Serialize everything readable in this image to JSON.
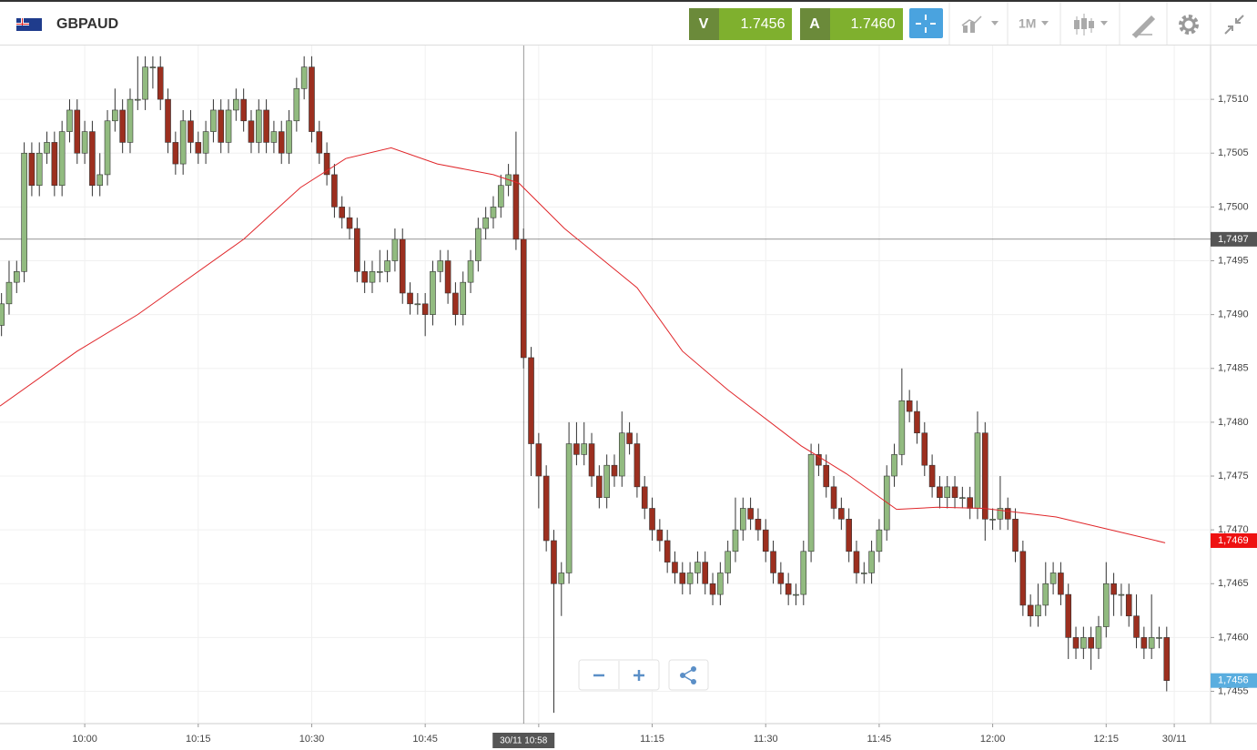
{
  "header": {
    "symbol": "GBPAUD",
    "sell": {
      "label": "V",
      "price": "1.7456"
    },
    "buy": {
      "label": "A",
      "price": "1.7460"
    },
    "timeframe": "1M"
  },
  "chart_data": {
    "type": "candlestick",
    "x": [
      589,
      590,
      591,
      592,
      593,
      594,
      595,
      596,
      597,
      598,
      599,
      600,
      601,
      602,
      603,
      604,
      605,
      606,
      607,
      608,
      609,
      610,
      611,
      612,
      613,
      614,
      615,
      616,
      617,
      618,
      619,
      620,
      621,
      622,
      623,
      624,
      625,
      626,
      627,
      628,
      629,
      630,
      631,
      632,
      633,
      634,
      635,
      636,
      637,
      638,
      639,
      640,
      641,
      642,
      643,
      644,
      645,
      646,
      647,
      648,
      649,
      650,
      651,
      652,
      653,
      654,
      655,
      656,
      657,
      658,
      659,
      660,
      661,
      662,
      663,
      664,
      665,
      666,
      667,
      668,
      669,
      670,
      671,
      672,
      673,
      674,
      675,
      676,
      677,
      678,
      679,
      680,
      681,
      682,
      683,
      684,
      685,
      686,
      687,
      688,
      689,
      690,
      691,
      692,
      693,
      694,
      695,
      696,
      697,
      698,
      699,
      700,
      701,
      702,
      703,
      704,
      705,
      706,
      707,
      708,
      709,
      710,
      711,
      712,
      713,
      714,
      715,
      716,
      717,
      718,
      719,
      720,
      721,
      722,
      723,
      724,
      725,
      726,
      727,
      728,
      729,
      730,
      731,
      732,
      733,
      734,
      735,
      736,
      737,
      738,
      739,
      740,
      741,
      742,
      743
    ],
    "ohlc": [
      [
        1.7489,
        1.7492,
        1.7488,
        1.7491
      ],
      [
        1.7491,
        1.7495,
        1.749,
        1.7493
      ],
      [
        1.7493,
        1.7495,
        1.7492,
        1.7494
      ],
      [
        1.7494,
        1.7506,
        1.7493,
        1.7505
      ],
      [
        1.7505,
        1.7506,
        1.7501,
        1.7502
      ],
      [
        1.7502,
        1.7506,
        1.7501,
        1.7505
      ],
      [
        1.7505,
        1.7507,
        1.7504,
        1.7506
      ],
      [
        1.7506,
        1.7507,
        1.7501,
        1.7502
      ],
      [
        1.7502,
        1.7508,
        1.7501,
        1.7507
      ],
      [
        1.7507,
        1.751,
        1.7506,
        1.7509
      ],
      [
        1.7509,
        1.751,
        1.7504,
        1.7505
      ],
      [
        1.7505,
        1.7508,
        1.7504,
        1.7507
      ],
      [
        1.7507,
        1.7508,
        1.7501,
        1.7502
      ],
      [
        1.7502,
        1.7505,
        1.7501,
        1.7503
      ],
      [
        1.7503,
        1.7509,
        1.7502,
        1.7508
      ],
      [
        1.7508,
        1.7511,
        1.7507,
        1.7509
      ],
      [
        1.7509,
        1.751,
        1.7505,
        1.7506
      ],
      [
        1.7506,
        1.7511,
        1.7505,
        1.751
      ],
      [
        1.751,
        1.7514,
        1.7509,
        1.751
      ],
      [
        1.751,
        1.7514,
        1.7509,
        1.7513
      ],
      [
        1.7513,
        1.7514,
        1.7511,
        1.7513
      ],
      [
        1.7513,
        1.7514,
        1.7509,
        1.751
      ],
      [
        1.751,
        1.7511,
        1.7505,
        1.7506
      ],
      [
        1.7506,
        1.7507,
        1.7503,
        1.7504
      ],
      [
        1.7504,
        1.7509,
        1.7503,
        1.7508
      ],
      [
        1.7508,
        1.7509,
        1.7505,
        1.7506
      ],
      [
        1.7506,
        1.7507,
        1.7504,
        1.7505
      ],
      [
        1.7505,
        1.7508,
        1.7504,
        1.7507
      ],
      [
        1.7507,
        1.751,
        1.7506,
        1.7509
      ],
      [
        1.7509,
        1.751,
        1.7505,
        1.7506
      ],
      [
        1.7506,
        1.751,
        1.7505,
        1.7509
      ],
      [
        1.7509,
        1.7511,
        1.7508,
        1.751
      ],
      [
        1.751,
        1.7511,
        1.7507,
        1.7508
      ],
      [
        1.7508,
        1.7509,
        1.7505,
        1.7506
      ],
      [
        1.7506,
        1.751,
        1.7505,
        1.7509
      ],
      [
        1.7509,
        1.751,
        1.7505,
        1.7506
      ],
      [
        1.7506,
        1.7508,
        1.7505,
        1.7507
      ],
      [
        1.7507,
        1.7508,
        1.7504,
        1.7505
      ],
      [
        1.7505,
        1.7509,
        1.7504,
        1.7508
      ],
      [
        1.7508,
        1.7512,
        1.7507,
        1.7511
      ],
      [
        1.7511,
        1.7514,
        1.751,
        1.7513
      ],
      [
        1.7513,
        1.7514,
        1.7506,
        1.7507
      ],
      [
        1.7507,
        1.7508,
        1.7504,
        1.7505
      ],
      [
        1.7505,
        1.7506,
        1.7502,
        1.7503
      ],
      [
        1.7503,
        1.7504,
        1.7499,
        1.75
      ],
      [
        1.75,
        1.7501,
        1.7498,
        1.7499
      ],
      [
        1.7499,
        1.75,
        1.7497,
        1.7498
      ],
      [
        1.7498,
        1.7499,
        1.7493,
        1.7494
      ],
      [
        1.7494,
        1.7495,
        1.7492,
        1.7493
      ],
      [
        1.7493,
        1.7495,
        1.7492,
        1.7494
      ],
      [
        1.7494,
        1.7496,
        1.7493,
        1.7494
      ],
      [
        1.7494,
        1.7496,
        1.7493,
        1.7495
      ],
      [
        1.7495,
        1.7498,
        1.7494,
        1.7497
      ],
      [
        1.7497,
        1.7498,
        1.7491,
        1.7492
      ],
      [
        1.7492,
        1.7493,
        1.749,
        1.7491
      ],
      [
        1.7491,
        1.7492,
        1.749,
        1.7491
      ],
      [
        1.7491,
        1.7492,
        1.7488,
        1.749
      ],
      [
        1.749,
        1.7495,
        1.7489,
        1.7494
      ],
      [
        1.7494,
        1.7496,
        1.7493,
        1.7495
      ],
      [
        1.7495,
        1.7496,
        1.7491,
        1.7492
      ],
      [
        1.7492,
        1.7493,
        1.7489,
        1.749
      ],
      [
        1.749,
        1.7494,
        1.7489,
        1.7493
      ],
      [
        1.7493,
        1.7496,
        1.7492,
        1.7495
      ],
      [
        1.7495,
        1.7499,
        1.7494,
        1.7498
      ],
      [
        1.7498,
        1.75,
        1.7497,
        1.7499
      ],
      [
        1.7499,
        1.7501,
        1.7498,
        1.75
      ],
      [
        1.75,
        1.7503,
        1.7499,
        1.7502
      ],
      [
        1.7502,
        1.7504,
        1.7501,
        1.7503
      ],
      [
        1.7503,
        1.7507,
        1.7496,
        1.7497
      ],
      [
        1.7497,
        1.7498,
        1.7485,
        1.7486
      ],
      [
        1.7486,
        1.7487,
        1.7475,
        1.7478
      ],
      [
        1.7478,
        1.7479,
        1.7472,
        1.7475
      ],
      [
        1.7475,
        1.7476,
        1.7468,
        1.7469
      ],
      [
        1.7469,
        1.747,
        1.7453,
        1.7465
      ],
      [
        1.7465,
        1.7467,
        1.7462,
        1.7466
      ],
      [
        1.7466,
        1.748,
        1.7465,
        1.7478
      ],
      [
        1.7478,
        1.748,
        1.7476,
        1.7477
      ],
      [
        1.7477,
        1.748,
        1.7476,
        1.7478
      ],
      [
        1.7478,
        1.7479,
        1.7474,
        1.7475
      ],
      [
        1.7475,
        1.7476,
        1.7472,
        1.7473
      ],
      [
        1.7473,
        1.7477,
        1.7472,
        1.7476
      ],
      [
        1.7476,
        1.7477,
        1.7474,
        1.7475
      ],
      [
        1.7475,
        1.7481,
        1.7474,
        1.7479
      ],
      [
        1.7479,
        1.748,
        1.7477,
        1.7478
      ],
      [
        1.7478,
        1.7479,
        1.7473,
        1.7474
      ],
      [
        1.7474,
        1.7475,
        1.7471,
        1.7472
      ],
      [
        1.7472,
        1.7473,
        1.7469,
        1.747
      ],
      [
        1.747,
        1.7471,
        1.7468,
        1.7469
      ],
      [
        1.7469,
        1.747,
        1.7466,
        1.7467
      ],
      [
        1.7467,
        1.7468,
        1.7465,
        1.7466
      ],
      [
        1.7466,
        1.7467,
        1.7464,
        1.7465
      ],
      [
        1.7465,
        1.7467,
        1.7464,
        1.7466
      ],
      [
        1.7466,
        1.7468,
        1.7465,
        1.7467
      ],
      [
        1.7467,
        1.7468,
        1.7464,
        1.7465
      ],
      [
        1.7465,
        1.7466,
        1.7463,
        1.7464
      ],
      [
        1.7464,
        1.7467,
        1.7463,
        1.7466
      ],
      [
        1.7466,
        1.7469,
        1.7465,
        1.7468
      ],
      [
        1.7468,
        1.7473,
        1.7467,
        1.747
      ],
      [
        1.747,
        1.7473,
        1.7469,
        1.7472
      ],
      [
        1.7472,
        1.7473,
        1.747,
        1.7471
      ],
      [
        1.7471,
        1.7472,
        1.7469,
        1.747
      ],
      [
        1.747,
        1.7471,
        1.7467,
        1.7468
      ],
      [
        1.7468,
        1.7469,
        1.7465,
        1.7466
      ],
      [
        1.7466,
        1.7467,
        1.7464,
        1.7465
      ],
      [
        1.7465,
        1.7466,
        1.7463,
        1.7464
      ],
      [
        1.7464,
        1.7465,
        1.7463,
        1.7464
      ],
      [
        1.7464,
        1.7469,
        1.7463,
        1.7468
      ],
      [
        1.7468,
        1.7478,
        1.7467,
        1.7477
      ],
      [
        1.7477,
        1.7478,
        1.7475,
        1.7476
      ],
      [
        1.7476,
        1.7477,
        1.7473,
        1.7474
      ],
      [
        1.7474,
        1.7475,
        1.7471,
        1.7472
      ],
      [
        1.7472,
        1.7473,
        1.747,
        1.7471
      ],
      [
        1.7471,
        1.7472,
        1.7467,
        1.7468
      ],
      [
        1.7468,
        1.7469,
        1.7465,
        1.7466
      ],
      [
        1.7466,
        1.7467,
        1.7465,
        1.7466
      ],
      [
        1.7466,
        1.7469,
        1.7465,
        1.7468
      ],
      [
        1.7468,
        1.7471,
        1.7467,
        1.747
      ],
      [
        1.747,
        1.7476,
        1.7469,
        1.7475
      ],
      [
        1.7475,
        1.7478,
        1.7474,
        1.7477
      ],
      [
        1.7477,
        1.7485,
        1.7476,
        1.7482
      ],
      [
        1.7482,
        1.7483,
        1.748,
        1.7481
      ],
      [
        1.7481,
        1.7482,
        1.7478,
        1.7479
      ],
      [
        1.7479,
        1.748,
        1.7475,
        1.7476
      ],
      [
        1.7476,
        1.7477,
        1.7473,
        1.7474
      ],
      [
        1.7474,
        1.7475,
        1.7472,
        1.7473
      ],
      [
        1.7473,
        1.7475,
        1.7472,
        1.7474
      ],
      [
        1.7474,
        1.7475,
        1.7472,
        1.7473
      ],
      [
        1.7473,
        1.7474,
        1.7472,
        1.7473
      ],
      [
        1.7473,
        1.7474,
        1.7471,
        1.7472
      ],
      [
        1.7472,
        1.7481,
        1.7471,
        1.7479
      ],
      [
        1.7479,
        1.748,
        1.7469,
        1.7471
      ],
      [
        1.7471,
        1.7472,
        1.747,
        1.7471
      ],
      [
        1.7471,
        1.7475,
        1.747,
        1.7472
      ],
      [
        1.7472,
        1.7473,
        1.747,
        1.7471
      ],
      [
        1.7471,
        1.7472,
        1.7467,
        1.7468
      ],
      [
        1.7468,
        1.7469,
        1.7462,
        1.7463
      ],
      [
        1.7463,
        1.7464,
        1.7461,
        1.7462
      ],
      [
        1.7462,
        1.7465,
        1.7461,
        1.7463
      ],
      [
        1.7463,
        1.7467,
        1.7462,
        1.7465
      ],
      [
        1.7465,
        1.7467,
        1.7464,
        1.7466
      ],
      [
        1.7466,
        1.7467,
        1.7463,
        1.7464
      ],
      [
        1.7464,
        1.7465,
        1.7458,
        1.746
      ],
      [
        1.746,
        1.7461,
        1.7458,
        1.7459
      ],
      [
        1.7459,
        1.7461,
        1.7458,
        1.746
      ],
      [
        1.746,
        1.7461,
        1.7457,
        1.7459
      ],
      [
        1.7459,
        1.7462,
        1.7458,
        1.7461
      ],
      [
        1.7461,
        1.7467,
        1.746,
        1.7465
      ],
      [
        1.7465,
        1.7466,
        1.7462,
        1.7464
      ],
      [
        1.7464,
        1.7465,
        1.7462,
        1.7464
      ],
      [
        1.7464,
        1.7465,
        1.7461,
        1.7462
      ],
      [
        1.7462,
        1.7464,
        1.7459,
        1.746
      ],
      [
        1.746,
        1.7461,
        1.7458,
        1.7459
      ],
      [
        1.7459,
        1.7464,
        1.7458,
        1.746
      ],
      [
        1.746,
        1.7461,
        1.7459,
        1.746
      ],
      [
        1.746,
        1.7461,
        1.7455,
        1.7456
      ]
    ],
    "xlim": [
      588.8,
      748.8
    ],
    "xticks": [
      {
        "value": 600,
        "label": "10:00"
      },
      {
        "value": 615,
        "label": "10:15"
      },
      {
        "value": 630,
        "label": "10:30"
      },
      {
        "value": 645,
        "label": "10:45"
      },
      {
        "value": 660,
        "label": "11:00"
      },
      {
        "value": 675,
        "label": "11:15"
      },
      {
        "value": 690,
        "label": "11:30"
      },
      {
        "value": 705,
        "label": "11:45"
      },
      {
        "value": 720,
        "label": "12:00"
      },
      {
        "value": 735,
        "label": "12:15"
      },
      {
        "value": 744,
        "label": "30/11"
      }
    ],
    "ylim": [
      1.7452,
      1.7515
    ],
    "yticks": [
      {
        "value": 1.7455,
        "label": "1,7455"
      },
      {
        "value": 1.746,
        "label": "1,7460"
      },
      {
        "value": 1.7465,
        "label": "1,7465"
      },
      {
        "value": 1.747,
        "label": "1,7470"
      },
      {
        "value": 1.7475,
        "label": "1,7475"
      },
      {
        "value": 1.748,
        "label": "1,7480"
      },
      {
        "value": 1.7485,
        "label": "1,7485"
      },
      {
        "value": 1.749,
        "label": "1,7490"
      },
      {
        "value": 1.7495,
        "label": "1,7495"
      },
      {
        "value": 1.75,
        "label": "1,7500"
      },
      {
        "value": 1.7505,
        "label": "1,7505"
      },
      {
        "value": 1.751,
        "label": "1,7510"
      }
    ],
    "grid": true,
    "up_color": "#92bb80",
    "down_color": "#9c2f1f",
    "ma": {
      "color": "#e0262a",
      "x": [
        588.8,
        599,
        607,
        621,
        628.5,
        634.5,
        640.5,
        646.6,
        654,
        657.4,
        663.4,
        673,
        679,
        685,
        694.7,
        700.7,
        707.3,
        712.7,
        718.8,
        728.4,
        736.8,
        742.8
      ],
      "values": [
        1.74815,
        1.74866,
        1.749,
        1.7497,
        1.75018,
        1.75045,
        1.75055,
        1.7504,
        1.7503,
        1.75022,
        1.7498,
        1.74925,
        1.74866,
        1.7483,
        1.74778,
        1.74752,
        1.74719,
        1.74721,
        1.7472,
        1.74712,
        1.74698,
        1.74688
      ]
    },
    "crosshair": {
      "x": 658,
      "x_label": "30/11 10:58",
      "y": {
        "value": 1.7497,
        "label": "1,7497"
      },
      "color": "#555555"
    },
    "ma_price": {
      "value": 1.7469,
      "label": "1,7469",
      "color": "#ee1111"
    },
    "last_price": {
      "value": 1.7456,
      "label": "1,7456",
      "color": "#5aaedf"
    }
  }
}
